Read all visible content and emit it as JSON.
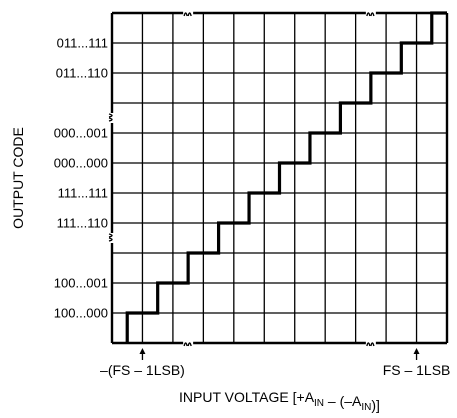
{
  "chart_data": {
    "type": "line",
    "title": "",
    "xlabel": "INPUT VOLTAGE [+A{sub:IN} – (–A{sub:IN})]",
    "ylabel": "OUTPUT CODE",
    "x_tick_labels": [
      "–(FS – 1LSB)",
      "FS – 1LSB"
    ],
    "y_tick_labels": [
      "011...111",
      "011...110",
      "000...001",
      "000...000",
      "111...111",
      "111...110",
      "100...001",
      "100...000"
    ],
    "grid": true,
    "series": [
      {
        "points": [
          [
            0,
            0
          ],
          [
            1,
            0
          ],
          [
            1,
            1
          ],
          [
            2,
            1
          ],
          [
            2,
            2
          ],
          [
            3,
            2
          ],
          [
            3,
            3
          ],
          [
            4,
            3
          ],
          [
            4,
            4
          ],
          [
            5,
            4
          ],
          [
            5,
            5
          ],
          [
            6,
            5
          ],
          [
            6,
            6
          ],
          [
            7,
            6
          ],
          [
            7,
            7
          ],
          [
            8,
            7
          ],
          [
            8,
            8
          ],
          [
            9,
            8
          ],
          [
            9,
            9
          ],
          [
            10,
            9
          ],
          [
            10,
            10
          ]
        ]
      }
    ]
  }
}
